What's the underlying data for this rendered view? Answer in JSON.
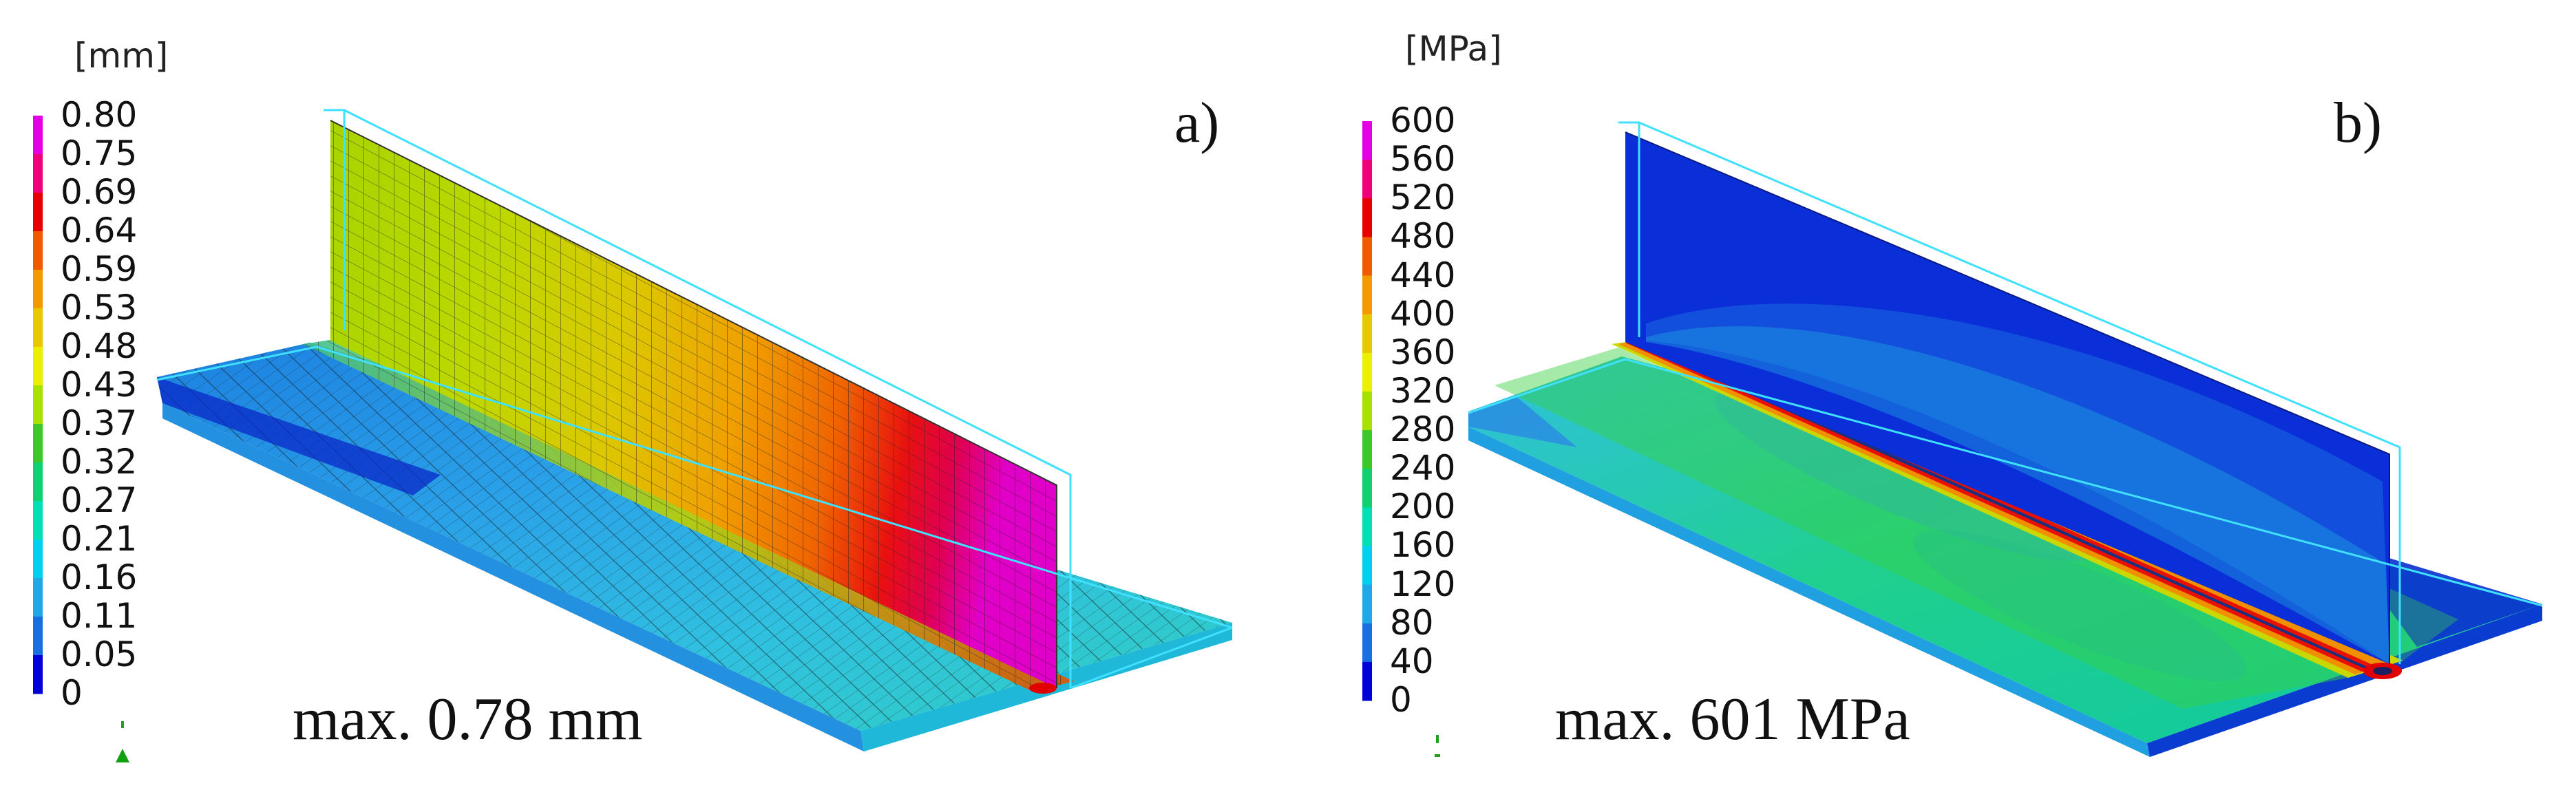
{
  "panels": [
    {
      "id": "a",
      "label": "a)",
      "unit": "[mm]",
      "max_text": "max. 0.78 mm",
      "legend_ticks": [
        "0.80",
        "0.75",
        "0.69",
        "0.64",
        "0.59",
        "0.53",
        "0.48",
        "0.43",
        "0.37",
        "0.32",
        "0.27",
        "0.21",
        "0.16",
        "0.11",
        "0.05",
        "0"
      ],
      "legend_colors": [
        "#e400e4",
        "#f0007a",
        "#e80000",
        "#f05a00",
        "#f49a00",
        "#e8c800",
        "#eaf000",
        "#a8e000",
        "#3cc828",
        "#10d070",
        "#00e0b4",
        "#00d0f0",
        "#20a8e8",
        "#1870e0",
        "#0000d8"
      ]
    },
    {
      "id": "b",
      "label": "b)",
      "unit": "[MPa]",
      "max_text": "max. 601 MPa",
      "legend_ticks": [
        "600",
        "560",
        "520",
        "480",
        "440",
        "400",
        "360",
        "320",
        "280",
        "240",
        "200",
        "160",
        "120",
        "80",
        "40",
        "0"
      ],
      "legend_colors": [
        "#e400e4",
        "#f0007a",
        "#e80000",
        "#f05a00",
        "#f49a00",
        "#e8c800",
        "#eaf000",
        "#a8e000",
        "#3cc828",
        "#10d070",
        "#00e0b4",
        "#00d0f0",
        "#20a8e8",
        "#1870e0",
        "#0000d8"
      ]
    }
  ]
}
